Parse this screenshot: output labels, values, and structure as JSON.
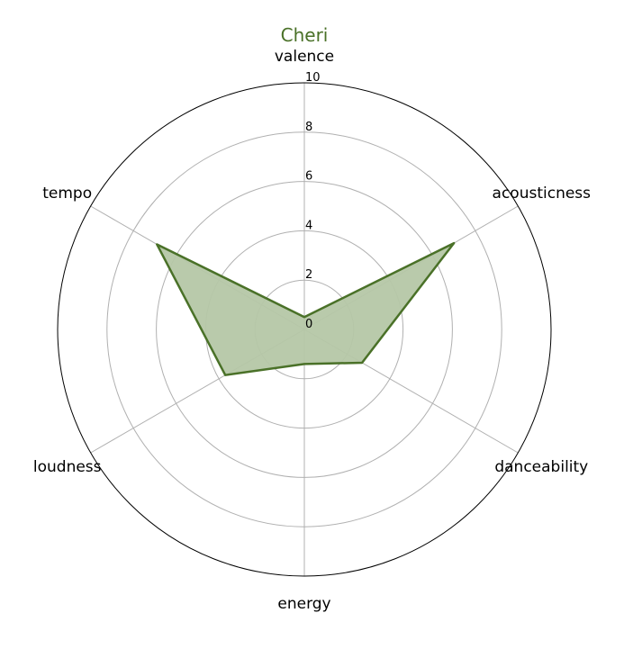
{
  "chart_data": {
    "type": "radar",
    "title": "Cheri",
    "axes": [
      "valence",
      "acousticness",
      "danceability",
      "energy",
      "loudness",
      "tempo"
    ],
    "series": [
      {
        "values": [
          0.5,
          7.0,
          2.7,
          1.4,
          3.7,
          6.9
        ]
      }
    ],
    "r_ticks": [
      0,
      2,
      4,
      6,
      8,
      10
    ],
    "rlim": [
      0,
      10
    ],
    "grid": true,
    "colors": {
      "line": "#4a7128",
      "fill": "#b5c7a6",
      "title": "#4a7128",
      "grid": "#b0b0b0",
      "frame": "#000000"
    }
  }
}
